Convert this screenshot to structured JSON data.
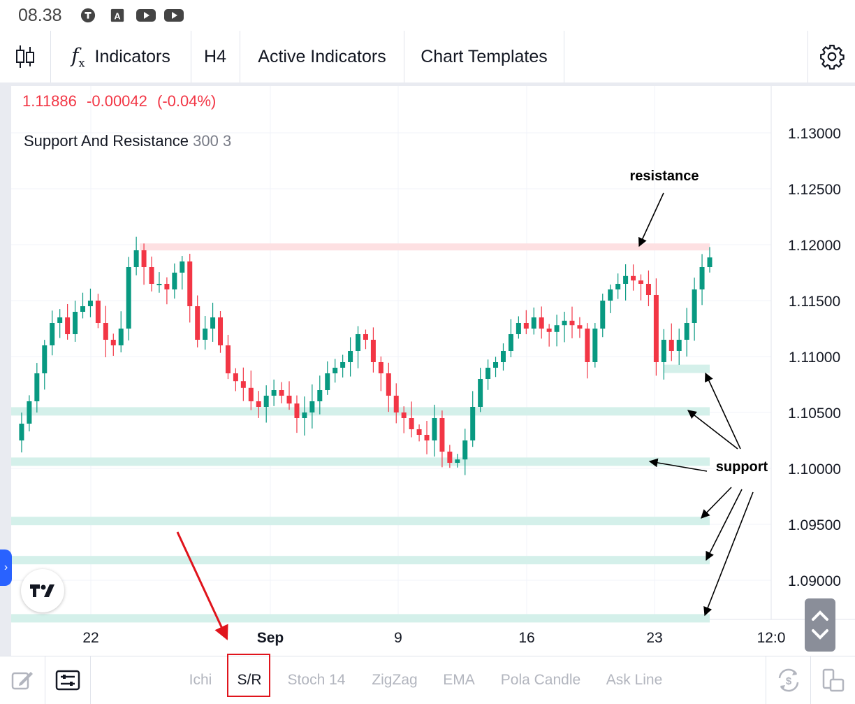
{
  "status_bar": {
    "time": "08.38",
    "icons": [
      "tg-icon",
      "a-icon",
      "youtube-icon",
      "youtube-icon"
    ]
  },
  "toolbar": {
    "candles_icon": "candles-icon",
    "indicators_label": "Indicators",
    "timeframe": "H4",
    "active_indicators": "Active Indicators",
    "chart_templates": "Chart Templates",
    "settings_icon": "gear-icon"
  },
  "chart": {
    "symbol_price": "1.11886",
    "change": "-0.00042",
    "change_pct": "(-0.04%)",
    "indicator_name": "Support And Resistance",
    "indicator_params": "300 3",
    "y_ticks": [
      "1.13000",
      "1.12500",
      "1.12000",
      "1.11500",
      "1.11000",
      "1.10500",
      "1.10000",
      "1.09500",
      "1.09000"
    ],
    "x_ticks": [
      "22",
      "Sep",
      "9",
      "16",
      "23",
      "12:0"
    ],
    "annotations": {
      "resistance": "resistance",
      "support": "support"
    },
    "colors": {
      "up": "#089981",
      "down": "#f23645",
      "support_zone": "#d4f0ea",
      "resistance_zone": "#fde0e2",
      "arrow_red": "#e0141c"
    }
  },
  "chart_data": {
    "type": "candlestick",
    "title": "",
    "ylim": [
      1.0865,
      1.134
    ],
    "y_tick_values": [
      1.13,
      1.125,
      1.12,
      1.115,
      1.11,
      1.105,
      1.1,
      1.095,
      1.09
    ],
    "resistance_levels": [
      1.1198
    ],
    "support_levels": [
      1.1089,
      1.1051,
      1.1006,
      1.0953,
      1.0918,
      1.0866
    ],
    "close_path": [
      1.1025,
      1.104,
      1.106,
      1.1085,
      1.111,
      1.113,
      1.1135,
      1.112,
      1.114,
      1.1145,
      1.115,
      1.113,
      1.1115,
      1.111,
      1.1125,
      1.118,
      1.1195,
      1.118,
      1.1165,
      1.1165,
      1.116,
      1.1175,
      1.1185,
      1.1145,
      1.1115,
      1.1125,
      1.1135,
      1.111,
      1.1085,
      1.1078,
      1.1072,
      1.106,
      1.1055,
      1.1065,
      1.107,
      1.1065,
      1.1058,
      1.1045,
      1.105,
      1.106,
      1.107,
      1.1085,
      1.109,
      1.1095,
      1.1105,
      1.112,
      1.1115,
      1.1095,
      1.1085,
      1.1065,
      1.105,
      1.1045,
      1.1035,
      1.103,
      1.1025,
      1.1045,
      1.1015,
      1.1005,
      1.1008,
      1.1025,
      1.1055,
      1.108,
      1.109,
      1.1095,
      1.1105,
      1.112,
      1.113,
      1.1125,
      1.1135,
      1.1125,
      1.1122,
      1.1128,
      1.1132,
      1.1128,
      1.1125,
      1.1095,
      1.1125,
      1.115,
      1.116,
      1.1165,
      1.1172,
      1.1168,
      1.1165,
      1.1155,
      1.1095,
      1.1115,
      1.1105,
      1.1115,
      1.113,
      1.116,
      1.118,
      1.11886
    ]
  },
  "bottom_bar": {
    "left_icons": [
      "draw-icon",
      "indicator-panel-icon"
    ],
    "tabs": [
      "Ichi",
      "S/R",
      "Stoch 14",
      "ZigZag",
      "EMA",
      "Pola Candle",
      "Ask Line"
    ],
    "right_icons": [
      "currency-sync-icon",
      "layout-icon"
    ]
  }
}
